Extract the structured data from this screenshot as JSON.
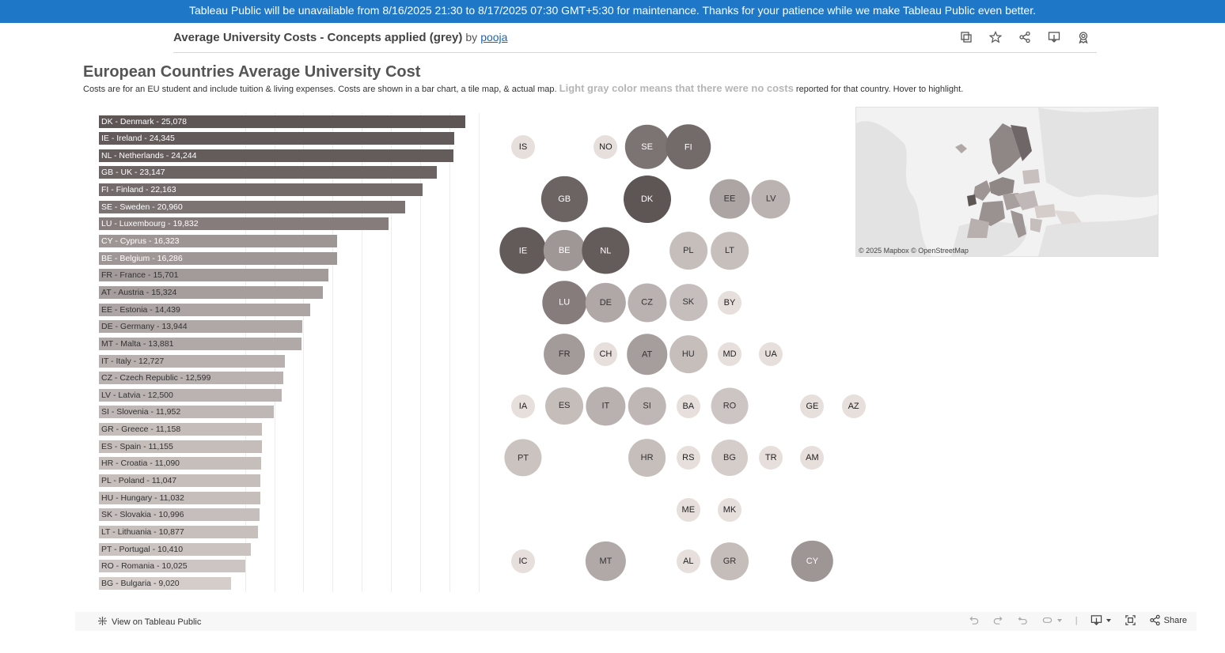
{
  "banner": {
    "text": "Tableau Public will be unavailable from 8/16/2025 21:30 to 8/17/2025 07:30 GMT+5:30 for maintenance. Thanks for your patience while we make Tableau Public even better."
  },
  "viz": {
    "title": "Average University Costs - Concepts applied (grey)",
    "by": "by",
    "author": "pooja"
  },
  "toolbar_icons": [
    "copy-icon",
    "star-icon",
    "share-icon",
    "download-icon",
    "badge-icon"
  ],
  "dashboard": {
    "title": "European Countries Average University Cost",
    "subtitle_part1": "Costs are for an EU student and include tuition & living expenses. Costs are shown in a bar chart, a tile map, & actual map.",
    "subtitle_gray": "Light gray color means that there were no costs",
    "subtitle_part2": "reported for that country. Hover to highlight."
  },
  "chart_data": {
    "type": "bar",
    "orientation": "horizontal",
    "categories": [
      "DK - Denmark",
      "IE - Ireland",
      "NL - Netherlands",
      "GB - UK",
      "FI - Finland",
      "SE - Sweden",
      "LU - Luxembourg",
      "CY - Cyprus",
      "BE - Belgium",
      "FR - France",
      "AT - Austria",
      "EE - Estonia",
      "DE - Germany",
      "MT - Malta",
      "IT - Italy",
      "CZ - Czech Republic",
      "LV - Latvia",
      "SI - Slovenia",
      "GR - Greece",
      "ES - Spain",
      "HR - Croatia",
      "PL - Poland",
      "HU - Hungary",
      "SK - Slovakia",
      "LT - Lithuania",
      "PT - Portugal",
      "RO - Romania",
      "BG - Bulgaria"
    ],
    "labels": [
      "DK - Denmark - 25,078",
      "IE - Ireland - 24,345",
      "NL - Netherlands - 24,244",
      "GB - UK - 23,147",
      "FI - Finland - 22,163",
      "SE - Sweden - 20,960",
      "LU - Luxembourg - 19,832",
      "CY - Cyprus - 16,323",
      "BE - Belgium - 16,286",
      "FR - France - 15,701",
      "AT - Austria - 15,324",
      "EE - Estonia - 14,439",
      "DE - Germany - 13,944",
      "MT - Malta - 13,881",
      "IT - Italy - 12,727",
      "CZ - Czech Republic - 12,599",
      "LV - Latvia - 12,500",
      "SI - Slovenia - 11,952",
      "GR - Greece - 11,158",
      "ES - Spain - 11,155",
      "HR - Croatia - 11,090",
      "PL - Poland - 11,047",
      "HU - Hungary - 11,032",
      "SK - Slovakia - 10,996",
      "LT - Lithuania - 10,877",
      "PT - Portugal - 10,410",
      "RO - Romania - 10,025",
      "BG - Bulgaria - 9,020"
    ],
    "values": [
      25078,
      24345,
      24244,
      23147,
      22163,
      20960,
      19832,
      16323,
      16286,
      15701,
      15324,
      14439,
      13944,
      13881,
      12727,
      12599,
      12500,
      11952,
      11158,
      11155,
      11090,
      11047,
      11032,
      10996,
      10877,
      10410,
      10025,
      9020
    ],
    "xlim": [
      0,
      26000
    ],
    "grid_x": [
      10000,
      12000,
      14000,
      16000,
      18000,
      20000,
      22000,
      24000,
      26000
    ],
    "colors": {
      "high": "#5e5555",
      "low": "#d4cdca"
    }
  },
  "tile_map": {
    "tiles": [
      {
        "code": "IS",
        "col": 0,
        "row": 0,
        "value": null
      },
      {
        "code": "NO",
        "col": 2,
        "row": 0,
        "value": null
      },
      {
        "code": "SE",
        "col": 3,
        "row": 0,
        "value": 20960
      },
      {
        "code": "FI",
        "col": 4,
        "row": 0,
        "value": 22163
      },
      {
        "code": "GB",
        "col": 1,
        "row": 1,
        "value": 23147
      },
      {
        "code": "DK",
        "col": 3,
        "row": 1,
        "value": 25078
      },
      {
        "code": "EE",
        "col": 5,
        "row": 1,
        "value": 14439
      },
      {
        "code": "LV",
        "col": 6,
        "row": 1,
        "value": 12500
      },
      {
        "code": "IE",
        "col": 0,
        "row": 2,
        "value": 24345
      },
      {
        "code": "BE",
        "col": 1,
        "row": 2,
        "value": 16286
      },
      {
        "code": "NL",
        "col": 2,
        "row": 2,
        "value": 24244
      },
      {
        "code": "PL",
        "col": 4,
        "row": 2,
        "value": 11047
      },
      {
        "code": "LT",
        "col": 5,
        "row": 2,
        "value": 10877
      },
      {
        "code": "LU",
        "col": 1,
        "row": 3,
        "value": 19832
      },
      {
        "code": "DE",
        "col": 2,
        "row": 3,
        "value": 13944
      },
      {
        "code": "CZ",
        "col": 3,
        "row": 3,
        "value": 12599
      },
      {
        "code": "SK",
        "col": 4,
        "row": 3,
        "value": 10996
      },
      {
        "code": "BY",
        "col": 5,
        "row": 3,
        "value": null
      },
      {
        "code": "FR",
        "col": 1,
        "row": 4,
        "value": 15701
      },
      {
        "code": "CH",
        "col": 2,
        "row": 4,
        "value": null
      },
      {
        "code": "AT",
        "col": 3,
        "row": 4,
        "value": 15324
      },
      {
        "code": "HU",
        "col": 4,
        "row": 4,
        "value": 11032
      },
      {
        "code": "MD",
        "col": 5,
        "row": 4,
        "value": null
      },
      {
        "code": "UA",
        "col": 6,
        "row": 4,
        "value": null
      },
      {
        "code": "IA",
        "col": 0,
        "row": 5,
        "value": null
      },
      {
        "code": "ES",
        "col": 1,
        "row": 5,
        "value": 11155
      },
      {
        "code": "IT",
        "col": 2,
        "row": 5,
        "value": 12727
      },
      {
        "code": "SI",
        "col": 3,
        "row": 5,
        "value": 11952
      },
      {
        "code": "BA",
        "col": 4,
        "row": 5,
        "value": null
      },
      {
        "code": "RO",
        "col": 5,
        "row": 5,
        "value": 10025
      },
      {
        "code": "GE",
        "col": 7,
        "row": 5,
        "value": null
      },
      {
        "code": "AZ",
        "col": 8,
        "row": 5,
        "value": null
      },
      {
        "code": "PT",
        "col": 0,
        "row": 6,
        "value": 10410
      },
      {
        "code": "HR",
        "col": 3,
        "row": 6,
        "value": 11090
      },
      {
        "code": "RS",
        "col": 4,
        "row": 6,
        "value": null
      },
      {
        "code": "BG",
        "col": 5,
        "row": 6,
        "value": 9020
      },
      {
        "code": "TR",
        "col": 6,
        "row": 6,
        "value": null
      },
      {
        "code": "AM",
        "col": 7,
        "row": 6,
        "value": null
      },
      {
        "code": "ME",
        "col": 4,
        "row": 7,
        "value": null
      },
      {
        "code": "MK",
        "col": 5,
        "row": 7,
        "value": null
      },
      {
        "code": "IC",
        "col": 0,
        "row": 8,
        "value": null
      },
      {
        "code": "MT",
        "col": 2,
        "row": 8,
        "value": 13881
      },
      {
        "code": "AL",
        "col": 4,
        "row": 8,
        "value": null
      },
      {
        "code": "GR",
        "col": 5,
        "row": 8,
        "value": 11158
      },
      {
        "code": "CY",
        "col": 7,
        "row": 8,
        "value": 16323
      }
    ],
    "no_data_color": "#e6dfdc"
  },
  "map": {
    "attribution": "© 2025 Mapbox  © OpenStreetMap"
  },
  "footer": {
    "view_label": "View on Tableau Public",
    "share_label": "Share"
  }
}
